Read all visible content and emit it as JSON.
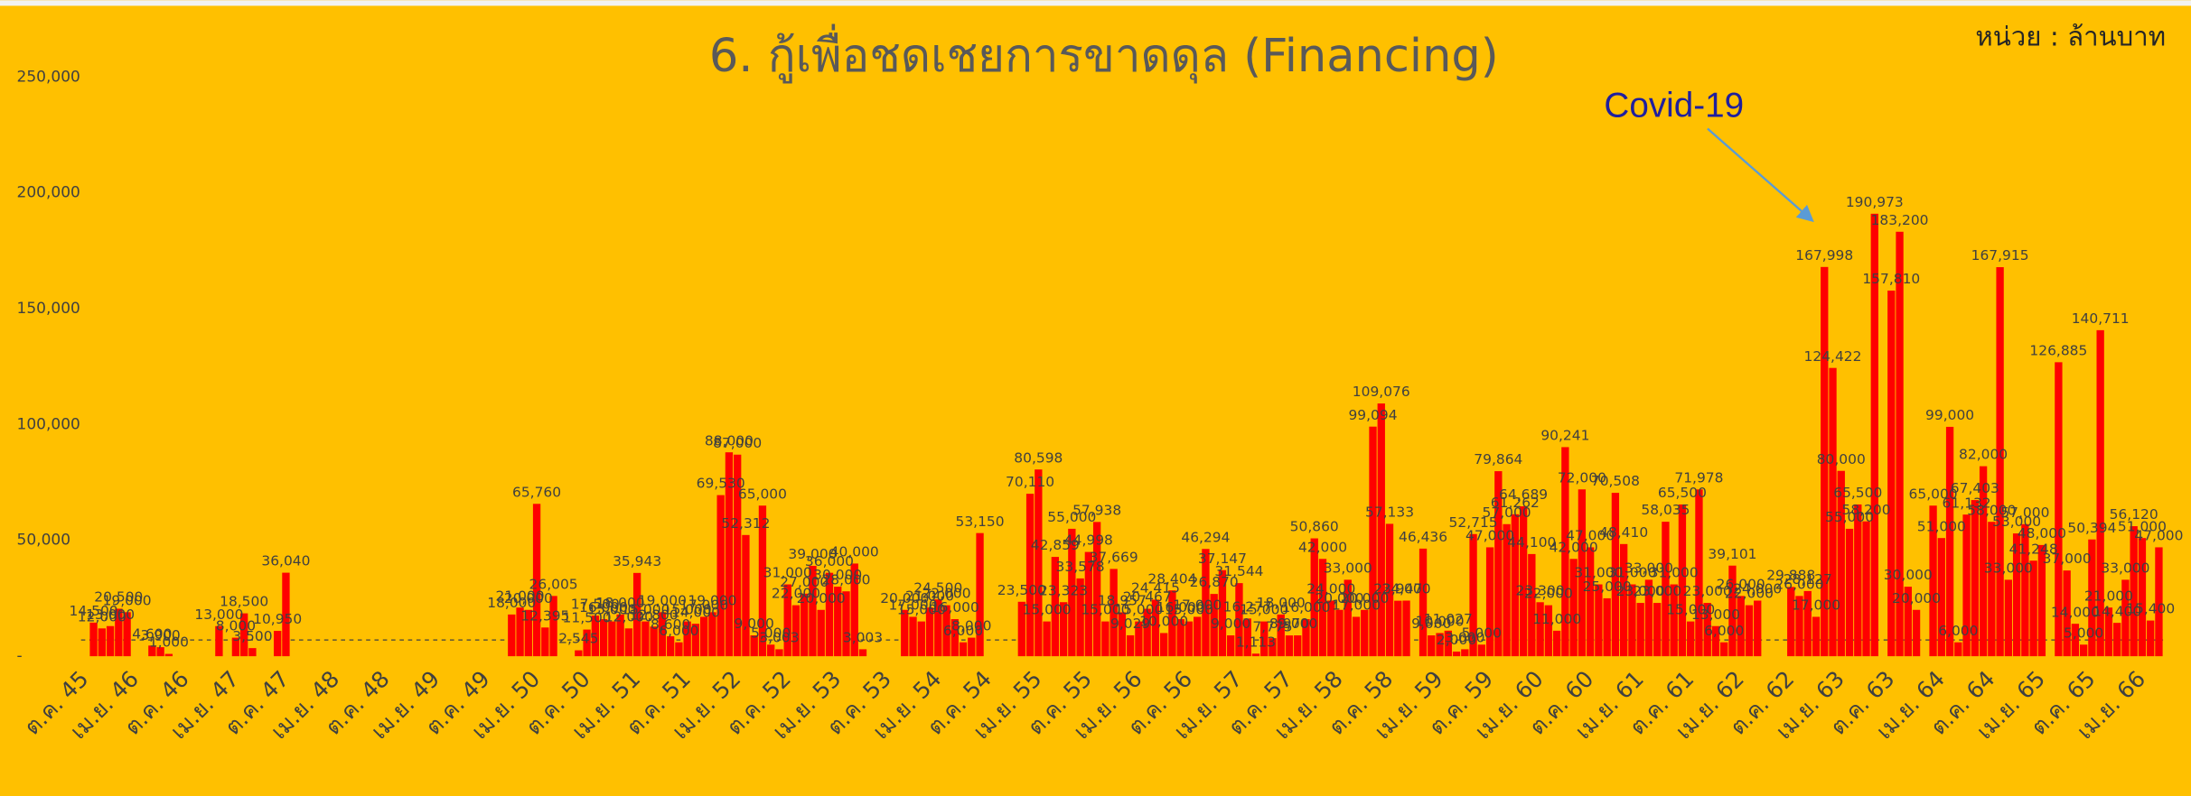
{
  "chart_data": {
    "type": "bar",
    "title": "6. กู้เพื่อชดเชยการขาดดุล (Financing)",
    "unit_label": "หน่วย : ล้านบาท",
    "annotation": "Covid-19",
    "color": "#FF0000",
    "reference_line": 7000,
    "ylim": [
      0,
      250000
    ],
    "yticks": [
      {
        "value": 0,
        "label": "-"
      },
      {
        "value": 50000,
        "label": "50,000"
      },
      {
        "value": 100000,
        "label": "100,000"
      },
      {
        "value": 150000,
        "label": "150,000"
      },
      {
        "value": 200000,
        "label": "200,000"
      },
      {
        "value": 250000,
        "label": "250,000"
      }
    ],
    "categories": [
      "ต.ค. 45",
      null,
      null,
      null,
      null,
      null,
      "เม.ย. 46",
      null,
      null,
      null,
      null,
      null,
      "ต.ค. 46",
      null,
      null,
      null,
      null,
      null,
      "เม.ย. 47",
      null,
      null,
      null,
      null,
      null,
      "ต.ค. 47",
      null,
      null,
      null,
      null,
      null,
      "เม.ย. 48",
      null,
      null,
      null,
      null,
      null,
      "ต.ค. 48",
      null,
      null,
      null,
      null,
      null,
      "เม.ย. 49",
      null,
      null,
      null,
      null,
      null,
      "ต.ค. 49",
      null,
      null,
      null,
      null,
      null,
      "เม.ย. 50",
      null,
      null,
      null,
      null,
      null,
      "ต.ค. 50",
      null,
      null,
      null,
      null,
      null,
      "เม.ย. 51",
      null,
      null,
      null,
      null,
      null,
      "ต.ค. 51",
      null,
      null,
      null,
      null,
      null,
      "เม.ย. 52",
      null,
      null,
      null,
      null,
      null,
      "ต.ค. 52",
      null,
      null,
      null,
      null,
      null,
      "เม.ย. 53",
      null,
      null,
      null,
      null,
      null,
      "ต.ค. 53",
      null,
      null,
      null,
      null,
      null,
      "เม.ย. 54",
      null,
      null,
      null,
      null,
      null,
      "ต.ค. 54",
      null,
      null,
      null,
      null,
      null,
      "เม.ย. 55",
      null,
      null,
      null,
      null,
      null,
      "ต.ค. 55",
      null,
      null,
      null,
      null,
      null,
      "เม.ย. 56",
      null,
      null,
      null,
      null,
      null,
      "ต.ค. 56",
      null,
      null,
      null,
      null,
      null,
      "เม.ย. 57",
      null,
      null,
      null,
      null,
      null,
      "ต.ค. 57",
      null,
      null,
      null,
      null,
      null,
      "เม.ย. 58",
      null,
      null,
      null,
      null,
      null,
      "ต.ค. 58",
      null,
      null,
      null,
      null,
      null,
      "เม.ย. 59",
      null,
      null,
      null,
      null,
      null,
      "ต.ค. 59",
      null,
      null,
      null,
      null,
      null,
      "เม.ย. 60",
      null,
      null,
      null,
      null,
      null,
      "ต.ค. 60",
      null,
      null,
      null,
      null,
      null,
      "เม.ย. 61",
      null,
      null,
      null,
      null,
      null,
      "ต.ค. 61",
      null,
      null,
      null,
      null,
      null,
      "เม.ย. 62",
      null,
      null,
      null,
      null,
      null,
      "ต.ค. 62",
      null,
      null,
      null,
      null,
      null,
      "เม.ย. 63",
      null,
      null,
      null,
      null,
      null,
      "ต.ค. 63",
      null,
      null,
      null,
      null,
      null,
      "เม.ย. 64",
      null,
      null,
      null,
      null,
      null,
      "ต.ค. 64",
      null,
      null,
      null,
      null,
      null,
      "เม.ย. 65",
      null,
      null,
      null,
      null,
      null,
      "ต.ค. 65",
      null,
      null,
      null,
      null,
      null,
      "เม.ย. 66",
      null,
      null
    ],
    "values": [
      0,
      14500,
      12000,
      13000,
      20500,
      19000,
      0,
      0,
      4600,
      3900,
      1000,
      0,
      0,
      0,
      0,
      0,
      13000,
      0,
      8000,
      18500,
      3500,
      0,
      0,
      10950,
      36040,
      0,
      0,
      0,
      0,
      0,
      0,
      0,
      0,
      0,
      0,
      0,
      0,
      0,
      0,
      0,
      0,
      0,
      0,
      0,
      0,
      0,
      0,
      0,
      0,
      0,
      0,
      18000,
      21000,
      20000,
      65760,
      12395,
      26005,
      0,
      0,
      2545,
      11500,
      17500,
      16000,
      15000,
      18000,
      12000,
      35943,
      15000,
      12800,
      19000,
      8600,
      6000,
      15000,
      14000,
      17000,
      19000,
      69530,
      88000,
      87000,
      52312,
      9000,
      65000,
      5000,
      3003,
      31000,
      22000,
      27000,
      39000,
      20000,
      36000,
      30000,
      28000,
      40000,
      3003,
      0,
      0,
      0,
      0,
      20000,
      17000,
      15000,
      21000,
      24500,
      22000,
      16000,
      6000,
      8000,
      53150,
      0,
      0,
      0,
      0,
      23500,
      70110,
      80598,
      15000,
      42859,
      23323,
      55000,
      33578,
      44998,
      57938,
      15000,
      37669,
      18957,
      9029,
      15000,
      20467,
      24415,
      10000,
      28404,
      16000,
      15000,
      17000,
      46294,
      26870,
      37147,
      9000,
      31544,
      16277,
      1113,
      15000,
      7775,
      18000,
      8970,
      9000,
      16000,
      50860,
      42000,
      24000,
      20000,
      33000,
      17000,
      20000,
      99094,
      109076,
      57133,
      23947,
      24000,
      0,
      46436,
      9000,
      10000,
      11027,
      2000,
      3000,
      52715,
      5000,
      47000,
      79864,
      57000,
      61262,
      64689,
      44100,
      23300,
      22000,
      11000,
      90241,
      42000,
      72000,
      47000,
      31000,
      25000,
      70508,
      48410,
      31000,
      23000,
      33000,
      23000,
      58035,
      31000,
      65500,
      15000,
      71978,
      23000,
      13000,
      6000,
      39101,
      26000,
      22000,
      24000,
      0,
      0,
      0,
      29888,
      26000,
      28127,
      17000,
      167998,
      124422,
      80000,
      55000,
      65500,
      58200,
      190973,
      0,
      157810,
      183200,
      30000,
      20000,
      0,
      65000,
      51000,
      99000,
      6000,
      61132,
      67403,
      82000,
      58000,
      167915,
      33000,
      53000,
      57000,
      41248,
      48000,
      0,
      126885,
      37000,
      14000,
      5000,
      50394,
      140711,
      21000,
      14400,
      33000,
      56120,
      51000,
      15400,
      47000
    ],
    "value_labels": [
      null,
      "14,500",
      "12,000",
      "13,000",
      "20,500",
      "19,000",
      null,
      null,
      "4,600",
      "3,900",
      "1,000",
      null,
      null,
      null,
      null,
      null,
      "13,000",
      null,
      "8,000",
      "18,500",
      "3,500",
      null,
      null,
      "10,950",
      "36,040",
      null,
      null,
      null,
      null,
      null,
      null,
      null,
      null,
      null,
      null,
      null,
      null,
      null,
      null,
      null,
      null,
      null,
      null,
      null,
      null,
      null,
      null,
      null,
      null,
      null,
      null,
      "18,000",
      "21,000",
      "20,000",
      "65,760",
      "12,395",
      "26,005",
      null,
      null,
      "2,545",
      "11,500",
      "17,500",
      "16,000",
      "15,000",
      "18,000",
      "12,000",
      "35,943",
      "15,000",
      "12,800",
      "19,000",
      "8,600",
      "6,000",
      "15,000",
      "14,000",
      "17,000",
      "19,000",
      "69,530",
      "88,000",
      "87,000",
      "52,312",
      "9,000",
      "65,000",
      "5,000",
      "3,003",
      "31,000",
      "22,000",
      "27,000",
      "39,000",
      "20,000",
      "36,000",
      "30,000",
      "28,000",
      "40,000",
      "3,003",
      null,
      null,
      null,
      null,
      "20,000",
      "17,000",
      "15,000",
      "21,000",
      "24,500",
      "22,000",
      "16,000",
      "6,000",
      "8,000",
      "53,150",
      null,
      null,
      null,
      null,
      "23,500",
      "70,110",
      "80,598",
      "15,000",
      "42,859",
      "23,323",
      "55,000",
      "33,578",
      "44,998",
      "57,938",
      "15,000",
      "37,669",
      "18,957",
      "9,029",
      "15,000",
      "20,467",
      "24,415",
      "10,000",
      "28,404",
      "16,000",
      "15,000",
      "17,000",
      "46,294",
      "26,870",
      "37,147",
      "9,000",
      "31,544",
      "16,277",
      "1,113",
      "15,000",
      "7,775",
      "18,000",
      "8,970",
      "9,000",
      "16,000",
      "50,860",
      "42,000",
      "24,000",
      "20,000",
      "33,000",
      "17,000",
      "20,000",
      "99,094",
      "109,076",
      "57,133",
      "23,947",
      "24,000",
      null,
      "46,436",
      "9,000",
      "10,000",
      "11,027",
      "2,000",
      "3,000",
      "52,715",
      "5,000",
      "47,000",
      "79,864",
      "57,000",
      "61,262",
      "64,689",
      "44,100",
      "23,300",
      "22,000",
      "11,000",
      "90,241",
      "42,000",
      "72,000",
      "47,000",
      "31,000",
      "25,000",
      "70,508",
      "48,410",
      "31,000",
      "23,000",
      "33,000",
      "23,000",
      "58,035",
      "31,000",
      "65,500",
      "15,000",
      "71,978",
      "23,000",
      "13,000",
      "6,000",
      "39,101",
      "26,000",
      "22,000",
      "24,000",
      null,
      null,
      null,
      "29,888",
      "26,000",
      "28,127",
      "17,000",
      "167,998",
      "124,422",
      "80,000",
      "55,000",
      "65,500",
      "58,200",
      "190,973",
      null,
      "157,810",
      "183,200",
      "30,000",
      "20,000",
      null,
      "65,000",
      "51,000",
      "99,000",
      "6,000",
      "61,132",
      "67,403",
      "82,000",
      "58,000",
      "167,915",
      "33,000",
      "53,000",
      "57,000",
      "41,248",
      "48,000",
      null,
      "126,885",
      "37,000",
      "14,000",
      "5,000",
      "50,394",
      "140,711",
      "21,000",
      "14,400",
      "33,000",
      "56,120",
      "51,000",
      "15,400",
      "47,000"
    ]
  }
}
